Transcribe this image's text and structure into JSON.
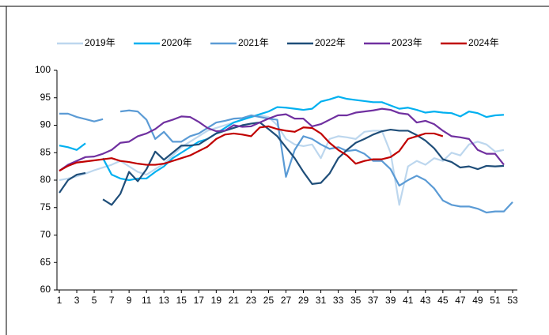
{
  "chart_data": {
    "type": "line",
    "x": [
      1,
      2,
      3,
      4,
      5,
      6,
      7,
      8,
      9,
      10,
      11,
      12,
      13,
      14,
      15,
      16,
      17,
      18,
      19,
      20,
      21,
      22,
      23,
      24,
      25,
      26,
      27,
      28,
      29,
      30,
      31,
      32,
      33,
      34,
      35,
      36,
      37,
      38,
      39,
      40,
      41,
      42,
      43,
      44,
      45,
      46,
      47,
      48,
      49,
      50,
      51,
      52,
      53
    ],
    "xlim": [
      1,
      53
    ],
    "xticks": [
      1,
      3,
      5,
      7,
      9,
      11,
      13,
      15,
      17,
      19,
      21,
      23,
      25,
      27,
      29,
      31,
      33,
      35,
      37,
      39,
      41,
      43,
      45,
      47,
      49,
      51,
      53
    ],
    "ylim": [
      60,
      100
    ],
    "yticks": [
      60,
      65,
      70,
      75,
      80,
      85,
      90,
      95,
      100
    ],
    "legend": "top",
    "series": [
      {
        "name": "2019年",
        "color": "#bdd7ee",
        "values": [
          80,
          80.3,
          80.7,
          81.2,
          81.8,
          82.3,
          82.8,
          83.5,
          82.5,
          81.5,
          81,
          82,
          83,
          84.5,
          86,
          87,
          88,
          89,
          89.5,
          90,
          90.5,
          91,
          91.5,
          91.8,
          91.5,
          90,
          87.5,
          86.5,
          86.2,
          86.5,
          84,
          87.5,
          88,
          87.8,
          87.5,
          88.8,
          89,
          89,
          85,
          75.5,
          82.5,
          83.5,
          82.8,
          84,
          83.5,
          85,
          84.5,
          86.5,
          87,
          86.5,
          85.2,
          85.5,
          null
        ]
      },
      {
        "name": "2020年",
        "color": "#00b0f0",
        "values": [
          86.3,
          86,
          85.5,
          86.7,
          null,
          84,
          81,
          80.3,
          80,
          80.3,
          80.3,
          81.5,
          82.5,
          84,
          85,
          86,
          87,
          87.5,
          88.5,
          89.5,
          90.5,
          91,
          91.5,
          92,
          92.5,
          93.3,
          93.2,
          93,
          92.8,
          93,
          94.3,
          94.7,
          95.2,
          94.8,
          94.6,
          94.4,
          94.2,
          94.2,
          93.6,
          93,
          93.2,
          92.8,
          92.3,
          92.5,
          92.3,
          92.2,
          91.6,
          92.5,
          92.2,
          91.5,
          91.8,
          91.9,
          null
        ]
      },
      {
        "name": "2021年",
        "color": "#5b9bd5",
        "values": [
          92.1,
          92.1,
          91.5,
          91.1,
          90.7,
          91.1,
          null,
          92.5,
          92.7,
          92.5,
          91,
          87.5,
          88.8,
          87,
          87,
          88,
          88.5,
          89.5,
          90.5,
          90.8,
          91.2,
          91.3,
          91.8,
          91.5,
          91.2,
          91,
          80.6,
          85.5,
          88,
          87.5,
          86.5,
          85.7,
          86,
          85.3,
          85.5,
          84.8,
          83.5,
          83.5,
          82,
          79,
          80,
          80.8,
          80,
          78.5,
          76.3,
          75.5,
          75.2,
          75.2,
          74.8,
          74.1,
          74.3,
          74.3,
          76
        ]
      },
      {
        "name": "2022年",
        "color": "#1f4e79",
        "values": [
          77.7,
          80,
          81,
          81.3,
          null,
          76.5,
          75.5,
          77.5,
          81.5,
          79.8,
          82,
          85.2,
          83.7,
          85,
          86.3,
          86.3,
          86.5,
          87.5,
          88.5,
          89,
          89.5,
          90,
          90.3,
          90.5,
          89.3,
          88,
          86,
          84,
          81.5,
          79.3,
          79.5,
          81.2,
          84,
          85.5,
          86.8,
          87.5,
          88.3,
          88.9,
          89.2,
          89,
          89,
          88.2,
          87.2,
          85.8,
          83.8,
          83.3,
          82.3,
          82.5,
          82,
          82.6,
          82.5,
          82.6,
          null
        ]
      },
      {
        "name": "2023年",
        "color": "#7030a0",
        "values": [
          81.7,
          82.8,
          83.5,
          84.2,
          84.3,
          84.8,
          85.5,
          86.8,
          87,
          88,
          88.5,
          89.3,
          90.5,
          91,
          91.6,
          91.5,
          90.6,
          89.5,
          88.9,
          89,
          90,
          89.7,
          89.8,
          90.5,
          91.2,
          91.8,
          92,
          91.2,
          91.2,
          89.8,
          90.2,
          91,
          91.8,
          91.8,
          92.3,
          92.5,
          92.7,
          93,
          92.8,
          92.2,
          92,
          90.5,
          90.8,
          90.2,
          89,
          88,
          87.8,
          87.5,
          85.5,
          84.8,
          84.8,
          82.8,
          null
        ]
      },
      {
        "name": "2024年",
        "color": "#c00000",
        "values": [
          81.7,
          82.6,
          83.2,
          83.4,
          83.6,
          83.8,
          84,
          83.5,
          83.3,
          83,
          82.8,
          82.8,
          83,
          83.5,
          84,
          84.5,
          85.3,
          86.1,
          87.5,
          88.3,
          88.5,
          88.3,
          88,
          89.6,
          89.8,
          89.3,
          89,
          88.8,
          89.6,
          89.5,
          88.5,
          86.8,
          85.5,
          84.5,
          83,
          83.5,
          83.8,
          83.8,
          84.2,
          85.3,
          87.5,
          88,
          88.5,
          88.5,
          88,
          null,
          null,
          null,
          null,
          null,
          null,
          null,
          null
        ]
      }
    ]
  }
}
